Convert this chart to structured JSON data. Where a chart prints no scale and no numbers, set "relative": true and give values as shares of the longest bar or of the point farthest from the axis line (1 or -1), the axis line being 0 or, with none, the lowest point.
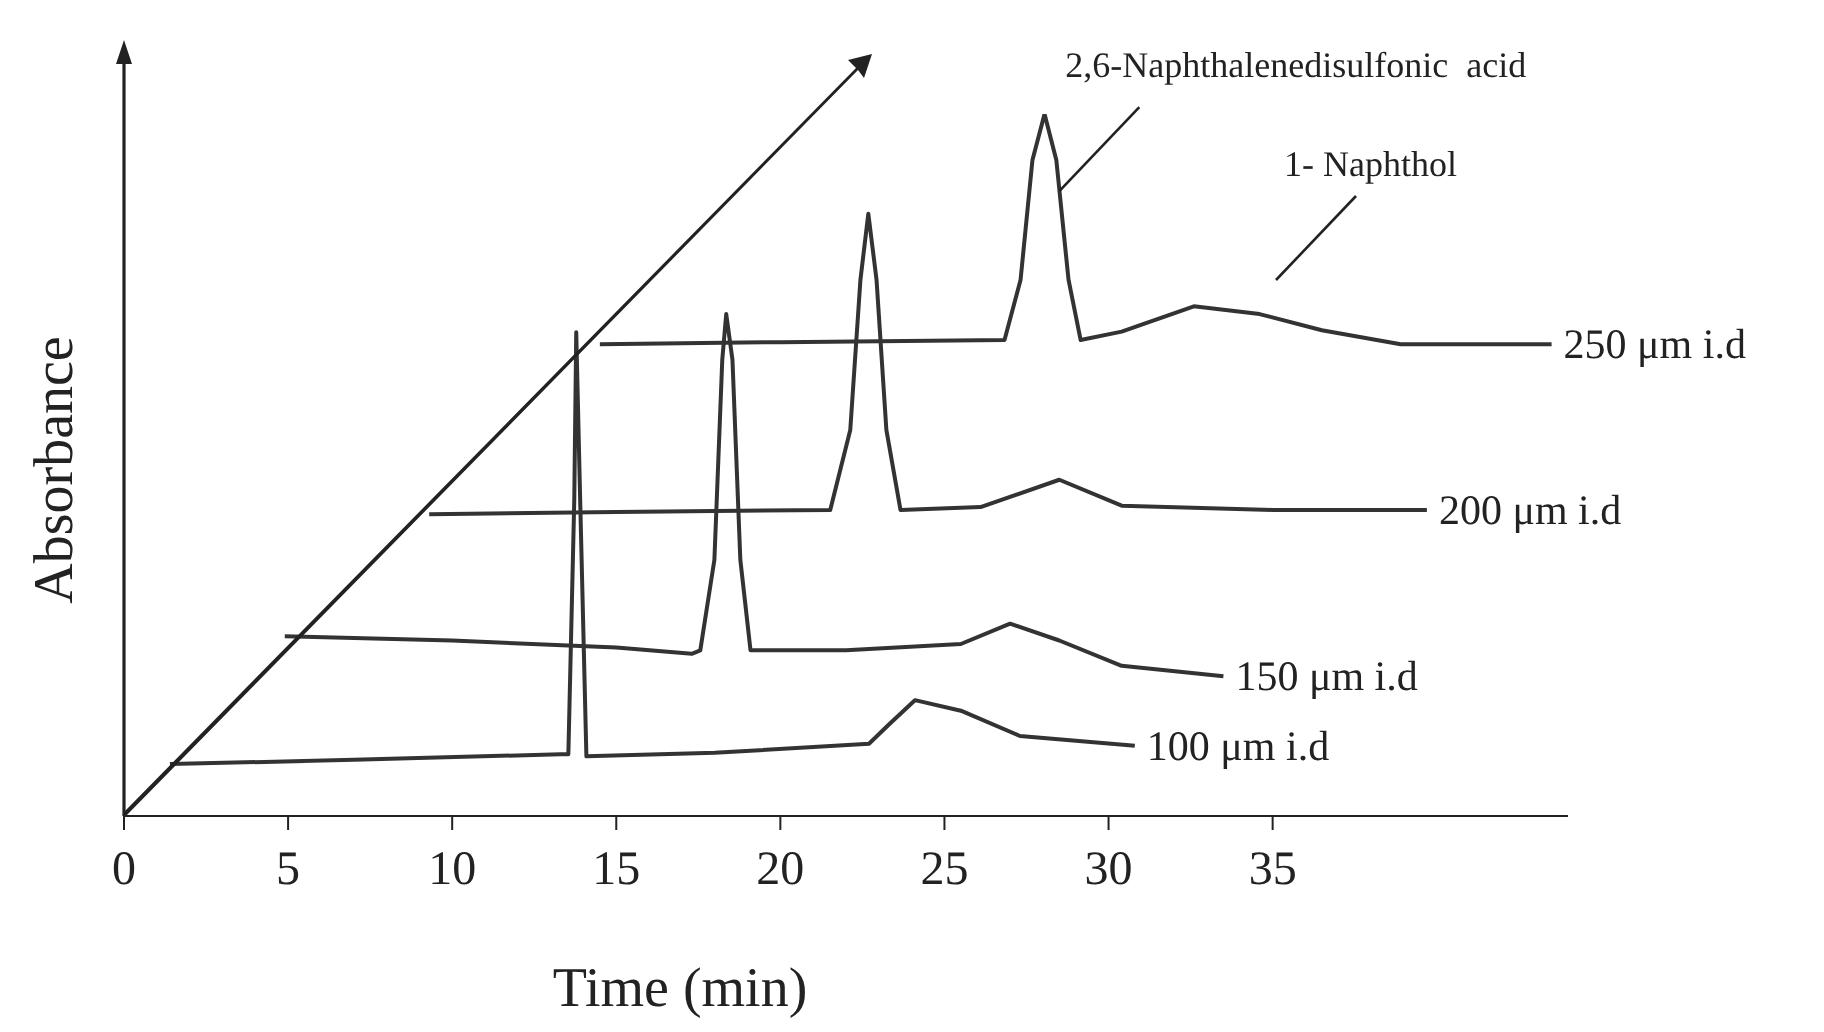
{
  "chart_data": {
    "type": "line",
    "xlabel": "Time (min)",
    "ylabel": "Absorbance",
    "relative": true,
    "xlim": [
      0,
      44
    ],
    "xticks": [
      0,
      5,
      10,
      15,
      20,
      25,
      30,
      35
    ],
    "annotations": [
      {
        "text": "2,6-Naphthalenedisulfonic  acid",
        "x": 28.5,
        "y": 0.89
      },
      "1- Naphthol"
    ],
    "series": [
      {
        "name": "100 μm i.d",
        "color": "#333333",
        "x": [
          1.4,
          7,
          13.3,
          13.54,
          13.72,
          13.78,
          13.9,
          14.09,
          18,
          22.7,
          23.3,
          24.1,
          25.5,
          27.3,
          30.8
        ],
        "values": [
          0.074,
          0.08,
          0.088,
          0.088,
          0.45,
          0.689,
          0.45,
          0.085,
          0.09,
          0.103,
          0.13,
          0.165,
          0.15,
          0.114,
          0.1
        ]
      },
      {
        "name": "150 μm i.d",
        "color": "#333333",
        "x": [
          4.9,
          10,
          15,
          17.3,
          17.56,
          17.99,
          18.23,
          18.35,
          18.54,
          18.78,
          19.09,
          22,
          25.5,
          27,
          28.5,
          30.4,
          33.5
        ],
        "values": [
          0.256,
          0.25,
          0.24,
          0.231,
          0.236,
          0.365,
          0.65,
          0.715,
          0.65,
          0.365,
          0.236,
          0.236,
          0.245,
          0.274,
          0.25,
          0.214,
          0.199
        ]
      },
      {
        "name": "200 μm i.d",
        "color": "#333333",
        "x": [
          9.3,
          15,
          21.52,
          22.13,
          22.44,
          22.68,
          22.93,
          23.23,
          23.66,
          26.1,
          28.5,
          30.4,
          35,
          39.7
        ],
        "values": [
          0.43,
          0.433,
          0.436,
          0.55,
          0.764,
          0.858,
          0.764,
          0.55,
          0.436,
          0.44,
          0.479,
          0.442,
          0.436,
          0.436
        ]
      },
      {
        "name": "250 μm i.d",
        "color": "#333333",
        "x": [
          14.5,
          20,
          26.83,
          27.32,
          27.68,
          28.05,
          28.41,
          28.78,
          29.15,
          30.4,
          32.6,
          34.6,
          36.5,
          38.9,
          43.5
        ],
        "values": [
          0.672,
          0.675,
          0.678,
          0.764,
          0.934,
          1,
          0.934,
          0.764,
          0.678,
          0.69,
          0.726,
          0.715,
          0.692,
          0.672,
          0.672
        ]
      }
    ]
  }
}
